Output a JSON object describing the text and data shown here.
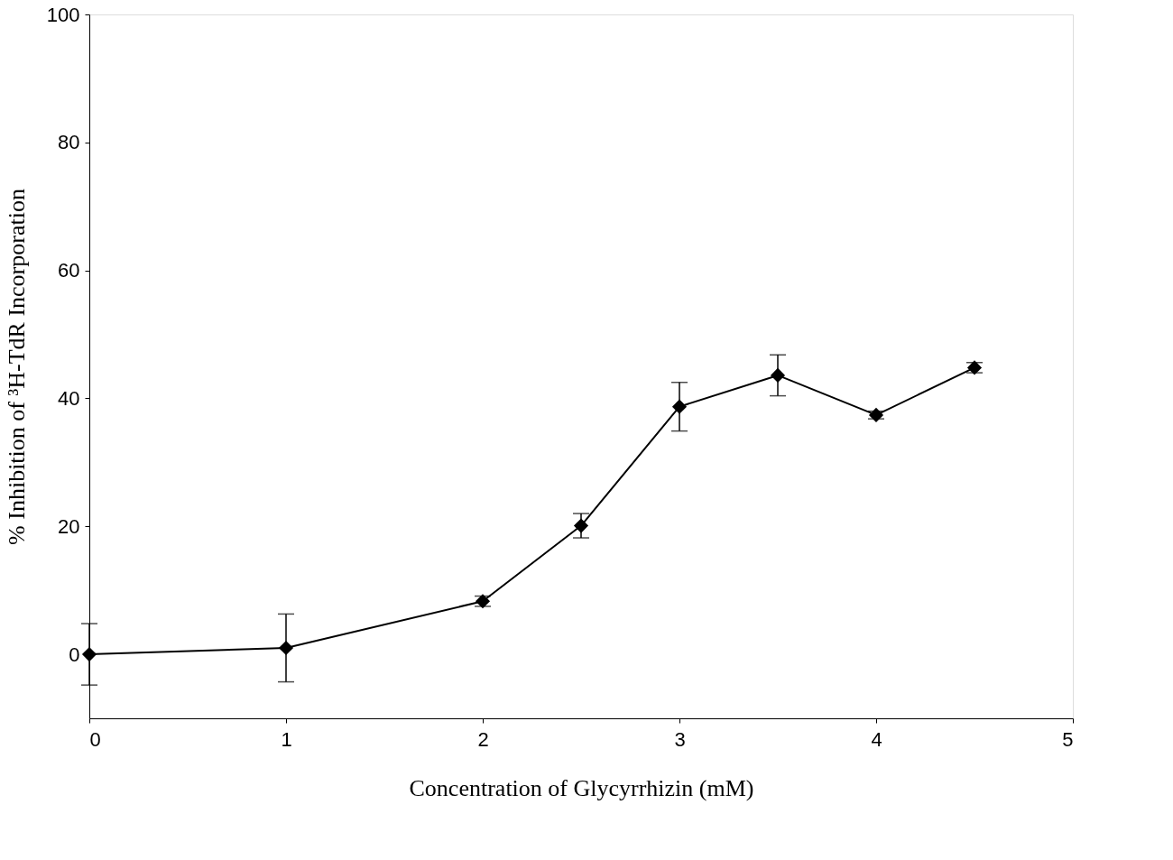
{
  "chart_data": {
    "type": "line",
    "xlabel": "Concentration of Glycyrrhizin (mM)",
    "ylabel": "% Inhibition of ³H-TdR Incorporation",
    "x": [
      0,
      1,
      2,
      2.5,
      3,
      3.5,
      4,
      4.5
    ],
    "series": [
      {
        "color": "#000000",
        "values": [
          0,
          1.0,
          8.3,
          20.1,
          38.7,
          43.6,
          37.4,
          44.8
        ],
        "errors": [
          4.8,
          5.3,
          0.8,
          1.9,
          3.8,
          3.2,
          0.6,
          0.8
        ]
      }
    ],
    "xlim": [
      0,
      5
    ],
    "xticks": [
      0,
      1,
      2,
      3,
      4,
      5
    ],
    "ylim": [
      -10,
      100
    ],
    "yticks": [
      0,
      20,
      40,
      60,
      80,
      100
    ],
    "grid": false,
    "marker": "diamond",
    "line_style": "solid"
  }
}
